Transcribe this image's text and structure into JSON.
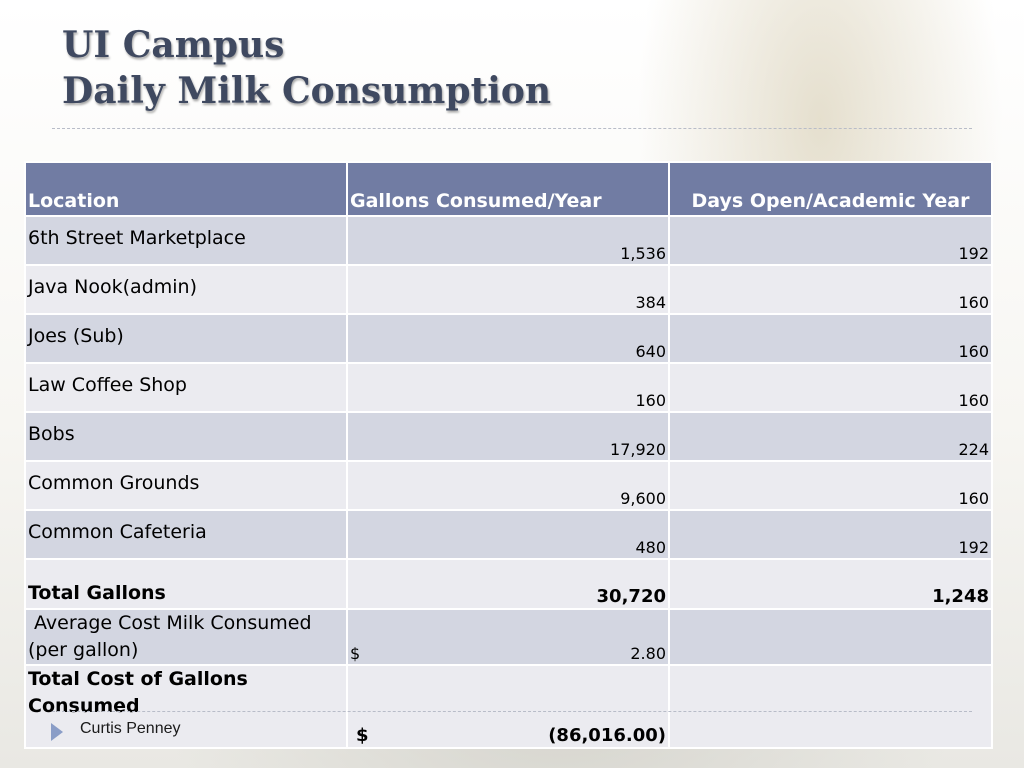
{
  "slide": {
    "title_line1": "UI Campus",
    "title_line2": "Daily Milk Consumption",
    "footer": "Curtis Penney"
  },
  "table": {
    "headers": [
      "Location",
      "Gallons Consumed/Year",
      "Days Open/Academic Year"
    ],
    "rows": [
      {
        "location": "6th Street Marketplace",
        "gallons": "1,536",
        "days": "192"
      },
      {
        "location": "Java Nook(admin)",
        "gallons": "384",
        "days": "160"
      },
      {
        "location": "Joes (Sub)",
        "gallons": "640",
        "days": "160"
      },
      {
        "location": "Law Coffee Shop",
        "gallons": "160",
        "days": "160"
      },
      {
        "location": "Bobs",
        "gallons": "17,920",
        "days": "224"
      },
      {
        "location": "Common Grounds",
        "gallons": "9,600",
        "days": "160"
      },
      {
        "location": "Common Cafeteria",
        "gallons": "480",
        "days": "192"
      }
    ],
    "total": {
      "label": "Total Gallons",
      "gallons": "30,720",
      "days": "1,248"
    },
    "average": {
      "label": " Average Cost Milk Consumed (per gallon)",
      "currency": "$",
      "value": "2.80"
    },
    "cost": {
      "label": "Total Cost of Gallons Consumed",
      "currency": "$",
      "value": "(86,016.00)"
    }
  },
  "colors": {
    "header_bg": "#717ca3",
    "row_dark": "#d3d6e1",
    "row_light": "#ebebf0",
    "title": "#3f4960"
  }
}
